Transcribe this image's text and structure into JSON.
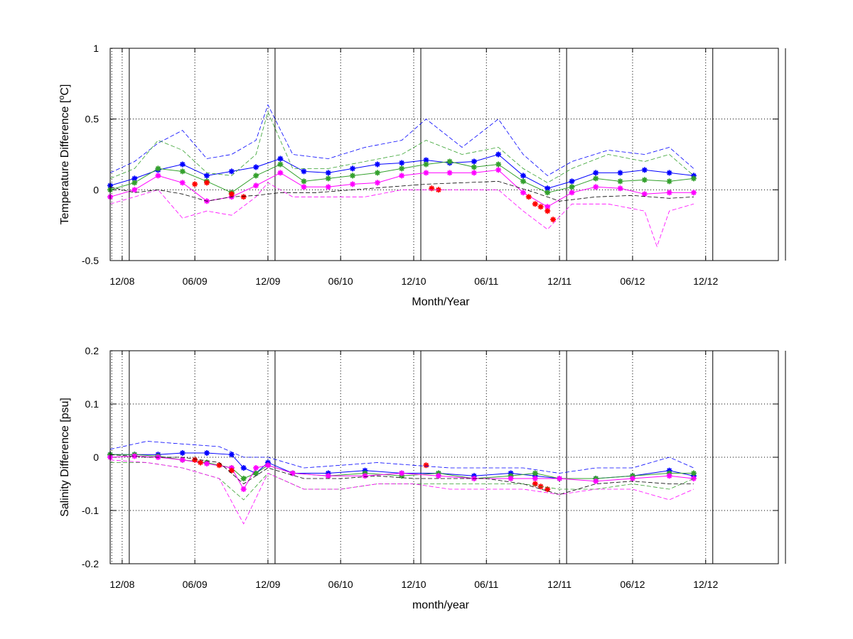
{
  "chart_data": [
    {
      "type": "line",
      "ylabel": "Temperature Difference [°C]",
      "ylabel_parts": [
        "Temperature Difference [",
        "o",
        "C]"
      ],
      "xlabel": "Month/Year",
      "xlim": [
        "2008-11",
        "2013-06"
      ],
      "ylim": [
        -0.5,
        1
      ],
      "yticks": [
        "-0.5",
        "0",
        "0.5",
        "1"
      ],
      "xticks": [
        "12/08",
        "06/09",
        "12/09",
        "06/10",
        "12/10",
        "06/11",
        "12/11",
        "06/12",
        "12/12"
      ],
      "grid": true,
      "series": [
        {
          "color": "#0000ff",
          "marker": "star",
          "x": [
            "2008-11-01",
            "2009-01-01",
            "2009-03-01",
            "2009-05-01",
            "2009-07-01",
            "2009-09-01",
            "2009-11-01",
            "2010-01-01",
            "2010-03-01",
            "2010-05-01",
            "2010-07-01",
            "2010-09-01",
            "2010-11-01",
            "2011-01-01",
            "2011-03-01",
            "2011-05-01",
            "2011-07-01",
            "2011-09-01",
            "2011-11-01",
            "2012-01-01",
            "2012-03-01",
            "2012-05-01",
            "2012-07-01",
            "2012-09-01",
            "2012-11-01"
          ],
          "values": [
            0.03,
            0.08,
            0.14,
            0.18,
            0.1,
            0.13,
            0.16,
            0.22,
            0.13,
            0.12,
            0.15,
            0.18,
            0.19,
            0.21,
            0.19,
            0.2,
            0.25,
            0.1,
            0.01,
            0.06,
            0.12,
            0.12,
            0.14,
            0.12,
            0.1
          ]
        },
        {
          "color": "#33a02c",
          "marker": "star",
          "x": [
            "2008-11-01",
            "2009-01-01",
            "2009-03-01",
            "2009-05-01",
            "2009-07-01",
            "2009-09-01",
            "2009-11-01",
            "2010-01-01",
            "2010-03-01",
            "2010-05-01",
            "2010-07-01",
            "2010-09-01",
            "2010-11-01",
            "2011-01-01",
            "2011-03-01",
            "2011-05-01",
            "2011-07-01",
            "2011-09-01",
            "2011-11-01",
            "2012-01-01",
            "2012-03-01",
            "2012-05-01",
            "2012-07-01",
            "2012-09-01",
            "2012-11-01"
          ],
          "values": [
            0.0,
            0.05,
            0.15,
            0.13,
            0.06,
            -0.02,
            0.1,
            0.18,
            0.06,
            0.08,
            0.1,
            0.12,
            0.15,
            0.18,
            0.2,
            0.16,
            0.18,
            0.06,
            -0.02,
            0.02,
            0.08,
            0.06,
            0.07,
            0.06,
            0.08
          ]
        },
        {
          "color": "#ff00ff",
          "marker": "star",
          "x": [
            "2008-11-01",
            "2009-01-01",
            "2009-03-01",
            "2009-05-01",
            "2009-07-01",
            "2009-09-01",
            "2009-11-01",
            "2010-01-01",
            "2010-03-01",
            "2010-05-01",
            "2010-07-01",
            "2010-09-01",
            "2010-11-01",
            "2011-01-01",
            "2011-03-01",
            "2011-05-01",
            "2011-07-01",
            "2011-09-01",
            "2011-11-01",
            "2012-01-01",
            "2012-03-01",
            "2012-05-01",
            "2012-07-01",
            "2012-09-01",
            "2012-11-01"
          ],
          "values": [
            -0.05,
            0.0,
            0.1,
            0.05,
            -0.08,
            -0.05,
            0.03,
            0.12,
            0.02,
            0.02,
            0.04,
            0.05,
            0.1,
            0.12,
            0.12,
            0.12,
            0.14,
            -0.02,
            -0.12,
            -0.02,
            0.02,
            0.01,
            -0.03,
            -0.02,
            -0.02
          ]
        },
        {
          "color": "#ff0000",
          "marker": "star",
          "x": [
            "2009-06-01",
            "2009-07-01",
            "2009-09-01",
            "2009-10-01",
            "2011-01-15",
            "2011-02-01",
            "2011-09-15",
            "2011-10-01",
            "2011-10-15",
            "2011-11-01",
            "2011-11-15"
          ],
          "values": [
            0.04,
            0.05,
            -0.03,
            -0.05,
            0.01,
            0.0,
            -0.05,
            -0.1,
            -0.12,
            -0.15,
            -0.21
          ]
        },
        {
          "color": "#0000ff",
          "style": "dashed",
          "x": [
            "2008-11-01",
            "2009-01-01",
            "2009-03-01",
            "2009-05-01",
            "2009-07-01",
            "2009-09-01",
            "2009-11-01",
            "2009-12-01",
            "2010-02-01",
            "2010-05-01",
            "2010-08-01",
            "2010-11-01",
            "2011-01-01",
            "2011-04-01",
            "2011-07-01",
            "2011-09-01",
            "2011-11-01",
            "2012-01-01",
            "2012-04-01",
            "2012-07-01",
            "2012-09-01",
            "2012-11-01"
          ],
          "values": [
            0.12,
            0.2,
            0.33,
            0.42,
            0.22,
            0.25,
            0.35,
            0.6,
            0.25,
            0.22,
            0.3,
            0.35,
            0.5,
            0.3,
            0.5,
            0.25,
            0.1,
            0.2,
            0.28,
            0.25,
            0.3,
            0.15
          ]
        },
        {
          "color": "#33a02c",
          "style": "dashed",
          "x": [
            "2008-11-01",
            "2009-01-01",
            "2009-03-01",
            "2009-05-01",
            "2009-07-01",
            "2009-09-01",
            "2009-11-01",
            "2009-12-01",
            "2010-02-01",
            "2010-05-01",
            "2010-08-01",
            "2010-11-01",
            "2011-01-01",
            "2011-04-01",
            "2011-07-01",
            "2011-09-01",
            "2011-11-01",
            "2012-01-01",
            "2012-04-01",
            "2012-07-01",
            "2012-09-01",
            "2012-11-01"
          ],
          "values": [
            0.08,
            0.15,
            0.35,
            0.28,
            0.12,
            0.1,
            0.25,
            0.55,
            0.15,
            0.15,
            0.2,
            0.25,
            0.35,
            0.25,
            0.3,
            0.15,
            0.05,
            0.15,
            0.25,
            0.2,
            0.25,
            0.1
          ]
        },
        {
          "color": "#ff00ff",
          "style": "dashed",
          "x": [
            "2008-11-01",
            "2009-01-01",
            "2009-03-01",
            "2009-05-01",
            "2009-07-01",
            "2009-09-01",
            "2009-11-01",
            "2009-12-01",
            "2010-02-01",
            "2010-05-01",
            "2010-08-01",
            "2010-11-01",
            "2011-01-01",
            "2011-04-01",
            "2011-07-01",
            "2011-09-01",
            "2011-11-01",
            "2012-01-01",
            "2012-04-01",
            "2012-07-01",
            "2012-08-01",
            "2012-09-01",
            "2012-11-01"
          ],
          "values": [
            -0.1,
            -0.05,
            0.0,
            -0.2,
            -0.15,
            -0.18,
            -0.05,
            0.05,
            -0.05,
            -0.05,
            -0.05,
            0.0,
            0.0,
            0.0,
            0.0,
            -0.15,
            -0.28,
            -0.1,
            -0.1,
            -0.15,
            -0.4,
            -0.15,
            -0.1
          ]
        },
        {
          "color": "#000000",
          "style": "dashed",
          "x": [
            "2008-11-01",
            "2009-01-01",
            "2009-03-01",
            "2009-05-01",
            "2009-07-01",
            "2009-09-01",
            "2009-11-01",
            "2010-01-01",
            "2010-04-01",
            "2010-07-01",
            "2010-10-01",
            "2011-01-01",
            "2011-04-01",
            "2011-07-01",
            "2011-10-01",
            "2011-12-01",
            "2012-03-01",
            "2012-06-01",
            "2012-09-01",
            "2012-11-01"
          ],
          "values": [
            0.02,
            -0.02,
            0.0,
            -0.03,
            -0.08,
            -0.05,
            -0.04,
            -0.02,
            -0.02,
            0.0,
            0.02,
            0.04,
            0.05,
            0.06,
            -0.02,
            -0.08,
            -0.05,
            -0.04,
            -0.06,
            -0.05
          ]
        }
      ],
      "events_dashed": [
        "2008-11-05"
      ],
      "events_solid": [
        "2008-12-01",
        "2009-12-01",
        "2010-12-01",
        "2011-12-01",
        "2012-12-01",
        "2013-06-01"
      ]
    },
    {
      "type": "line",
      "ylabel": "Salinity Difference [psu]",
      "xlabel": "month/year",
      "xlim": [
        "2008-11",
        "2013-06"
      ],
      "ylim": [
        -0.2,
        0.2
      ],
      "yticks": [
        "-0.2",
        "-0.1",
        "0",
        "0.1",
        "0.2"
      ],
      "xticks": [
        "12/08",
        "06/09",
        "12/09",
        "06/10",
        "12/10",
        "06/11",
        "12/11",
        "06/12",
        "12/12"
      ],
      "grid": true,
      "series": [
        {
          "color": "#0000ff",
          "marker": "star",
          "x": [
            "2008-11-01",
            "2009-01-01",
            "2009-03-01",
            "2009-05-01",
            "2009-07-01",
            "2009-09-01",
            "2009-10-01",
            "2009-11-01",
            "2009-12-01",
            "2010-02-01",
            "2010-05-01",
            "2010-08-01",
            "2010-11-01",
            "2011-02-01",
            "2011-05-01",
            "2011-08-01",
            "2011-10-01",
            "2011-12-01",
            "2012-03-01",
            "2012-06-01",
            "2012-09-01",
            "2012-11-01"
          ],
          "values": [
            0.005,
            0.005,
            0.005,
            0.008,
            0.008,
            0.005,
            -0.02,
            -0.03,
            -0.01,
            -0.03,
            -0.03,
            -0.025,
            -0.03,
            -0.03,
            -0.035,
            -0.03,
            -0.035,
            -0.04,
            -0.04,
            -0.035,
            -0.025,
            -0.035
          ]
        },
        {
          "color": "#33a02c",
          "marker": "star",
          "x": [
            "2008-11-01",
            "2009-01-01",
            "2009-03-01",
            "2009-05-01",
            "2009-07-01",
            "2009-09-01",
            "2009-10-01",
            "2009-11-01",
            "2009-12-01",
            "2010-02-01",
            "2010-05-01",
            "2010-08-01",
            "2010-11-01",
            "2011-02-01",
            "2011-05-01",
            "2011-08-01",
            "2011-10-01",
            "2011-12-01",
            "2012-03-01",
            "2012-06-01",
            "2012-09-01",
            "2012-11-01"
          ],
          "values": [
            0.005,
            0.005,
            0.002,
            -0.005,
            -0.01,
            -0.02,
            -0.04,
            -0.03,
            -0.015,
            -0.03,
            -0.035,
            -0.03,
            -0.035,
            -0.03,
            -0.04,
            -0.035,
            -0.03,
            -0.04,
            -0.04,
            -0.035,
            -0.03,
            -0.03
          ]
        },
        {
          "color": "#ff00ff",
          "marker": "star",
          "x": [
            "2008-11-01",
            "2009-01-01",
            "2009-03-01",
            "2009-05-01",
            "2009-07-01",
            "2009-09-01",
            "2009-10-01",
            "2009-11-01",
            "2009-12-01",
            "2010-02-01",
            "2010-05-01",
            "2010-08-01",
            "2010-11-01",
            "2011-02-01",
            "2011-05-01",
            "2011-08-01",
            "2011-10-01",
            "2011-12-01",
            "2012-03-01",
            "2012-06-01",
            "2012-09-01",
            "2012-11-01"
          ],
          "values": [
            0.0,
            0.002,
            0.0,
            -0.005,
            -0.012,
            -0.02,
            -0.06,
            -0.02,
            -0.015,
            -0.03,
            -0.035,
            -0.035,
            -0.03,
            -0.035,
            -0.04,
            -0.04,
            -0.04,
            -0.04,
            -0.045,
            -0.04,
            -0.035,
            -0.04
          ]
        },
        {
          "color": "#ff0000",
          "marker": "star",
          "x": [
            "2009-06-01",
            "2009-06-15",
            "2009-08-01",
            "2009-09-01",
            "2011-01-01",
            "2011-10-01",
            "2011-10-15",
            "2011-11-01"
          ],
          "values": [
            -0.005,
            -0.01,
            -0.015,
            -0.025,
            -0.015,
            -0.05,
            -0.055,
            -0.06
          ]
        },
        {
          "color": "#0000ff",
          "style": "dashed",
          "x": [
            "2008-11-01",
            "2009-02-01",
            "2009-05-01",
            "2009-08-01",
            "2009-10-01",
            "2009-12-01",
            "2010-03-01",
            "2010-06-01",
            "2010-09-01",
            "2010-12-01",
            "2011-03-01",
            "2011-06-01",
            "2011-09-01",
            "2011-12-01",
            "2012-03-01",
            "2012-06-01",
            "2012-09-01",
            "2012-11-01"
          ],
          "values": [
            0.015,
            0.03,
            0.025,
            0.02,
            0.0,
            0.0,
            -0.02,
            -0.015,
            -0.01,
            -0.015,
            -0.02,
            -0.02,
            -0.02,
            -0.03,
            -0.02,
            -0.02,
            0.0,
            -0.02
          ]
        },
        {
          "color": "#33a02c",
          "style": "dashed",
          "x": [
            "2008-11-01",
            "2009-02-01",
            "2009-05-01",
            "2009-08-01",
            "2009-10-01",
            "2009-12-01",
            "2010-03-01",
            "2010-06-01",
            "2010-09-01",
            "2010-12-01",
            "2011-03-01",
            "2011-06-01",
            "2011-09-01",
            "2011-12-01",
            "2012-03-01",
            "2012-06-01",
            "2012-09-01",
            "2012-11-01"
          ],
          "values": [
            -0.01,
            -0.01,
            -0.02,
            -0.04,
            -0.08,
            -0.03,
            -0.06,
            -0.06,
            -0.05,
            -0.05,
            -0.05,
            -0.05,
            -0.05,
            -0.06,
            -0.06,
            -0.05,
            -0.06,
            -0.04
          ]
        },
        {
          "color": "#ff00ff",
          "style": "dashed",
          "x": [
            "2008-11-01",
            "2009-02-01",
            "2009-05-01",
            "2009-08-01",
            "2009-10-01",
            "2009-12-01",
            "2010-03-01",
            "2010-06-01",
            "2010-09-01",
            "2010-12-01",
            "2011-03-01",
            "2011-06-01",
            "2011-09-01",
            "2011-12-01",
            "2012-03-01",
            "2012-06-01",
            "2012-09-01",
            "2012-11-01"
          ],
          "values": [
            -0.005,
            -0.01,
            -0.02,
            -0.04,
            -0.125,
            -0.03,
            -0.06,
            -0.06,
            -0.05,
            -0.05,
            -0.06,
            -0.06,
            -0.06,
            -0.07,
            -0.06,
            -0.06,
            -0.08,
            -0.06
          ]
        },
        {
          "color": "#000000",
          "style": "dashed",
          "x": [
            "2008-11-01",
            "2009-02-01",
            "2009-05-01",
            "2009-08-01",
            "2009-10-01",
            "2009-12-01",
            "2010-03-01",
            "2010-06-01",
            "2010-09-01",
            "2010-12-01",
            "2011-03-01",
            "2011-06-01",
            "2011-09-01",
            "2011-12-01",
            "2012-03-01",
            "2012-06-01",
            "2012-09-01",
            "2012-11-01"
          ],
          "values": [
            0.005,
            0.0,
            0.0,
            -0.01,
            -0.05,
            -0.02,
            -0.04,
            -0.04,
            -0.035,
            -0.04,
            -0.04,
            -0.04,
            -0.05,
            -0.07,
            -0.05,
            -0.045,
            -0.05,
            -0.05
          ]
        }
      ],
      "events_dashed": [
        "2008-11-05"
      ],
      "events_solid": [
        "2008-12-01",
        "2009-12-01",
        "2010-12-01",
        "2011-12-01",
        "2012-12-01",
        "2013-06-01"
      ]
    }
  ]
}
